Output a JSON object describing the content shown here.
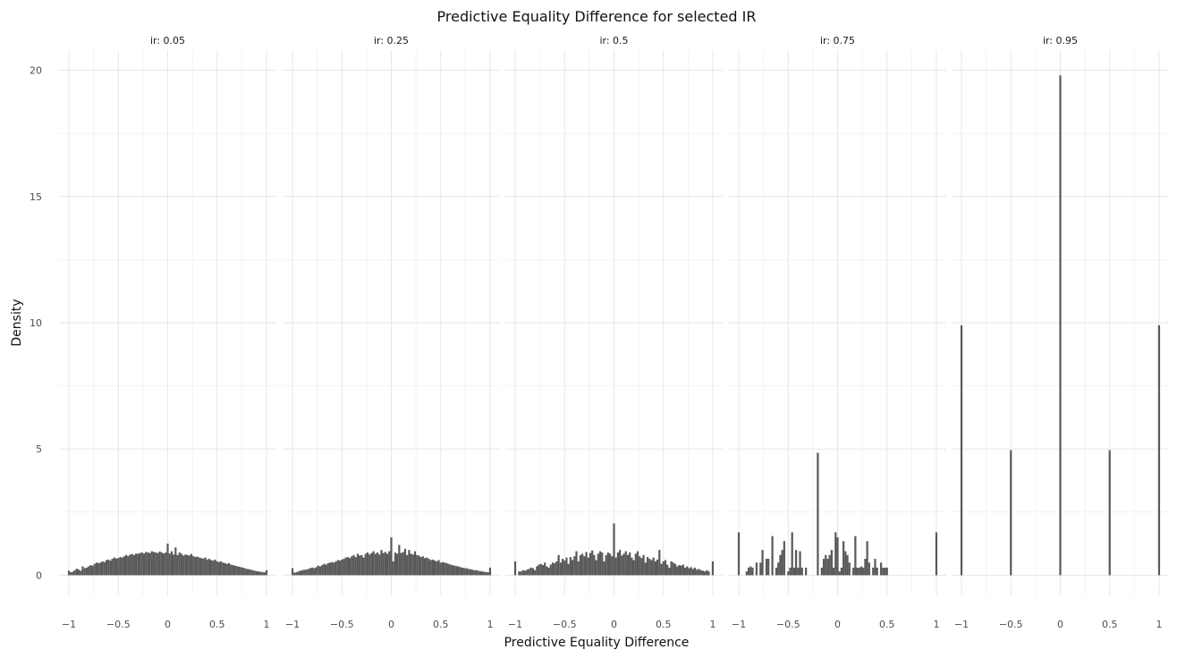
{
  "chart_data": {
    "type": "bar",
    "title": "Predictive Equality Difference for selected IR",
    "xlabel": "Predictive Equality Difference",
    "ylabel": "Density",
    "xlim": [
      -1.1,
      1.1
    ],
    "ylim": [
      -0.8,
      20.8
    ],
    "x_ticks": [
      -1,
      -0.5,
      0,
      0.5,
      1
    ],
    "x_tick_labels": [
      "−1",
      "−0.5",
      "0",
      "0.5",
      "1"
    ],
    "y_ticks": [
      0,
      5,
      10,
      15,
      20
    ],
    "y_tick_labels": [
      "0",
      "5",
      "10",
      "15",
      "20"
    ],
    "grid": true,
    "facets": [
      {
        "label": "ir: 0.05",
        "bin_width": 0.02,
        "x": [
          -1.0,
          -0.98,
          -0.96,
          -0.94,
          -0.92,
          -0.9,
          -0.88,
          -0.86,
          -0.84,
          -0.82,
          -0.8,
          -0.78,
          -0.76,
          -0.74,
          -0.72,
          -0.7,
          -0.68,
          -0.66,
          -0.64,
          -0.62,
          -0.6,
          -0.58,
          -0.56,
          -0.54,
          -0.52,
          -0.5,
          -0.48,
          -0.46,
          -0.44,
          -0.42,
          -0.4,
          -0.38,
          -0.36,
          -0.34,
          -0.32,
          -0.3,
          -0.28,
          -0.26,
          -0.24,
          -0.22,
          -0.2,
          -0.18,
          -0.16,
          -0.14,
          -0.12,
          -0.1,
          -0.08,
          -0.06,
          -0.04,
          -0.02,
          0.0,
          0.02,
          0.04,
          0.06,
          0.08,
          0.1,
          0.12,
          0.14,
          0.16,
          0.18,
          0.2,
          0.22,
          0.24,
          0.26,
          0.28,
          0.3,
          0.32,
          0.34,
          0.36,
          0.38,
          0.4,
          0.42,
          0.44,
          0.46,
          0.48,
          0.5,
          0.52,
          0.54,
          0.56,
          0.58,
          0.6,
          0.62,
          0.64,
          0.66,
          0.68,
          0.7,
          0.72,
          0.74,
          0.76,
          0.78,
          0.8,
          0.82,
          0.84,
          0.86,
          0.88,
          0.9,
          0.92,
          0.94,
          0.96,
          0.98,
          1.0
        ],
        "values": [
          0.18,
          0.12,
          0.14,
          0.2,
          0.26,
          0.22,
          0.18,
          0.35,
          0.28,
          0.3,
          0.35,
          0.4,
          0.38,
          0.45,
          0.5,
          0.48,
          0.5,
          0.55,
          0.52,
          0.6,
          0.62,
          0.58,
          0.65,
          0.7,
          0.66,
          0.68,
          0.72,
          0.7,
          0.75,
          0.8,
          0.76,
          0.82,
          0.84,
          0.8,
          0.86,
          0.85,
          0.88,
          0.9,
          0.86,
          0.92,
          0.9,
          0.88,
          0.95,
          0.92,
          0.9,
          0.88,
          0.94,
          0.9,
          0.86,
          0.9,
          1.25,
          0.86,
          0.95,
          0.82,
          1.1,
          0.8,
          0.9,
          0.85,
          0.78,
          0.82,
          0.8,
          0.78,
          0.84,
          0.76,
          0.72,
          0.74,
          0.7,
          0.68,
          0.66,
          0.7,
          0.62,
          0.65,
          0.6,
          0.58,
          0.62,
          0.55,
          0.52,
          0.55,
          0.5,
          0.48,
          0.45,
          0.48,
          0.42,
          0.4,
          0.38,
          0.36,
          0.34,
          0.32,
          0.3,
          0.28,
          0.25,
          0.24,
          0.22,
          0.2,
          0.18,
          0.16,
          0.15,
          0.14,
          0.12,
          0.12,
          0.2
        ]
      },
      {
        "label": "ir: 0.25",
        "bin_width": 0.02,
        "x": [
          -1.0,
          -0.98,
          -0.96,
          -0.94,
          -0.92,
          -0.9,
          -0.88,
          -0.86,
          -0.84,
          -0.82,
          -0.8,
          -0.78,
          -0.76,
          -0.74,
          -0.72,
          -0.7,
          -0.68,
          -0.66,
          -0.64,
          -0.62,
          -0.6,
          -0.58,
          -0.56,
          -0.54,
          -0.52,
          -0.5,
          -0.48,
          -0.46,
          -0.44,
          -0.42,
          -0.4,
          -0.38,
          -0.36,
          -0.34,
          -0.32,
          -0.3,
          -0.28,
          -0.26,
          -0.24,
          -0.22,
          -0.2,
          -0.18,
          -0.16,
          -0.14,
          -0.12,
          -0.1,
          -0.08,
          -0.06,
          -0.04,
          -0.02,
          0.0,
          0.02,
          0.04,
          0.06,
          0.08,
          0.1,
          0.12,
          0.14,
          0.16,
          0.18,
          0.2,
          0.22,
          0.24,
          0.26,
          0.28,
          0.3,
          0.32,
          0.34,
          0.36,
          0.38,
          0.4,
          0.42,
          0.44,
          0.46,
          0.48,
          0.5,
          0.52,
          0.54,
          0.56,
          0.58,
          0.6,
          0.62,
          0.64,
          0.66,
          0.68,
          0.7,
          0.72,
          0.74,
          0.76,
          0.78,
          0.8,
          0.82,
          0.84,
          0.86,
          0.88,
          0.9,
          0.92,
          0.94,
          0.96,
          0.98,
          1.0
        ],
        "values": [
          0.28,
          0.1,
          0.12,
          0.15,
          0.18,
          0.2,
          0.22,
          0.22,
          0.25,
          0.28,
          0.3,
          0.28,
          0.32,
          0.38,
          0.35,
          0.4,
          0.45,
          0.42,
          0.48,
          0.5,
          0.52,
          0.5,
          0.55,
          0.6,
          0.58,
          0.62,
          0.65,
          0.7,
          0.72,
          0.68,
          0.75,
          0.8,
          0.72,
          0.85,
          0.78,
          0.8,
          0.7,
          0.85,
          0.9,
          0.82,
          0.88,
          0.95,
          0.85,
          0.9,
          0.82,
          1.0,
          0.88,
          0.92,
          0.85,
          0.95,
          1.5,
          0.55,
          0.9,
          0.85,
          1.2,
          0.88,
          0.92,
          1.05,
          0.8,
          1.0,
          0.85,
          0.82,
          0.95,
          0.8,
          0.78,
          0.72,
          0.75,
          0.68,
          0.7,
          0.65,
          0.6,
          0.62,
          0.58,
          0.55,
          0.6,
          0.5,
          0.52,
          0.5,
          0.48,
          0.45,
          0.42,
          0.4,
          0.38,
          0.36,
          0.35,
          0.32,
          0.3,
          0.28,
          0.28,
          0.25,
          0.24,
          0.22,
          0.2,
          0.2,
          0.18,
          0.16,
          0.15,
          0.14,
          0.12,
          0.12,
          0.3
        ]
      },
      {
        "label": "ir: 0.5",
        "bin_width": 0.02,
        "x": [
          -1.0,
          -0.98,
          -0.96,
          -0.94,
          -0.92,
          -0.9,
          -0.88,
          -0.86,
          -0.84,
          -0.82,
          -0.8,
          -0.78,
          -0.76,
          -0.74,
          -0.72,
          -0.7,
          -0.68,
          -0.66,
          -0.64,
          -0.62,
          -0.6,
          -0.58,
          -0.56,
          -0.54,
          -0.52,
          -0.5,
          -0.48,
          -0.46,
          -0.44,
          -0.42,
          -0.4,
          -0.38,
          -0.36,
          -0.34,
          -0.32,
          -0.3,
          -0.28,
          -0.26,
          -0.24,
          -0.22,
          -0.2,
          -0.18,
          -0.16,
          -0.14,
          -0.12,
          -0.1,
          -0.08,
          -0.06,
          -0.04,
          -0.02,
          0.0,
          0.02,
          0.04,
          0.06,
          0.08,
          0.1,
          0.12,
          0.14,
          0.16,
          0.18,
          0.2,
          0.22,
          0.24,
          0.26,
          0.28,
          0.3,
          0.32,
          0.34,
          0.36,
          0.38,
          0.4,
          0.42,
          0.44,
          0.46,
          0.48,
          0.5,
          0.52,
          0.54,
          0.56,
          0.58,
          0.6,
          0.62,
          0.64,
          0.66,
          0.68,
          0.7,
          0.72,
          0.74,
          0.76,
          0.78,
          0.8,
          0.82,
          0.84,
          0.86,
          0.88,
          0.9,
          0.92,
          0.94,
          0.96,
          0.98,
          1.0
        ],
        "values": [
          0.55,
          0.0,
          0.15,
          0.15,
          0.2,
          0.18,
          0.22,
          0.25,
          0.3,
          0.28,
          0.2,
          0.35,
          0.42,
          0.45,
          0.4,
          0.5,
          0.35,
          0.3,
          0.42,
          0.5,
          0.48,
          0.55,
          0.8,
          0.5,
          0.65,
          0.58,
          0.7,
          0.45,
          0.72,
          0.6,
          0.75,
          0.95,
          0.55,
          0.8,
          0.85,
          0.75,
          0.92,
          0.7,
          0.88,
          0.98,
          0.8,
          0.6,
          0.85,
          0.95,
          0.9,
          0.55,
          0.8,
          0.9,
          0.85,
          0.75,
          2.05,
          0.7,
          0.9,
          1.0,
          0.78,
          0.85,
          0.95,
          0.8,
          0.9,
          0.7,
          0.6,
          0.85,
          0.95,
          0.75,
          0.68,
          0.8,
          0.5,
          0.72,
          0.65,
          0.6,
          0.7,
          0.55,
          0.62,
          1.0,
          0.45,
          0.55,
          0.6,
          0.42,
          0.3,
          0.55,
          0.5,
          0.45,
          0.35,
          0.4,
          0.38,
          0.42,
          0.3,
          0.35,
          0.28,
          0.32,
          0.25,
          0.3,
          0.22,
          0.25,
          0.2,
          0.18,
          0.15,
          0.2,
          0.15,
          0.0,
          0.55
        ]
      },
      {
        "label": "ir: 0.75",
        "bin_width": 0.02,
        "x": [
          -1.0,
          -0.98,
          -0.96,
          -0.94,
          -0.92,
          -0.9,
          -0.88,
          -0.86,
          -0.84,
          -0.82,
          -0.8,
          -0.78,
          -0.76,
          -0.74,
          -0.72,
          -0.7,
          -0.68,
          -0.66,
          -0.64,
          -0.62,
          -0.6,
          -0.58,
          -0.56,
          -0.54,
          -0.52,
          -0.5,
          -0.48,
          -0.46,
          -0.44,
          -0.42,
          -0.4,
          -0.38,
          -0.36,
          -0.34,
          -0.32,
          -0.3,
          -0.28,
          -0.26,
          -0.24,
          -0.22,
          -0.2,
          -0.18,
          -0.16,
          -0.14,
          -0.12,
          -0.1,
          -0.08,
          -0.06,
          -0.04,
          -0.02,
          0.0,
          0.02,
          0.04,
          0.06,
          0.08,
          0.1,
          0.12,
          0.14,
          0.16,
          0.18,
          0.2,
          0.22,
          0.24,
          0.26,
          0.28,
          0.3,
          0.32,
          0.34,
          0.36,
          0.38,
          0.4,
          0.42,
          0.44,
          0.46,
          0.48,
          0.5,
          0.52,
          0.54,
          0.56,
          0.58,
          0.6,
          0.62,
          0.64,
          0.66,
          0.68,
          0.7,
          0.72,
          0.74,
          0.76,
          0.78,
          0.8,
          0.82,
          0.84,
          0.86,
          0.88,
          0.9,
          0.92,
          0.94,
          0.96,
          0.98,
          1.0
        ],
        "values": [
          1.7,
          0.0,
          0.0,
          0.0,
          0.15,
          0.3,
          0.35,
          0.3,
          0.0,
          0.5,
          0.0,
          0.5,
          1.0,
          0.0,
          0.65,
          0.65,
          0.0,
          1.55,
          0.0,
          0.3,
          0.5,
          0.8,
          1.0,
          1.35,
          0.0,
          0.15,
          0.3,
          1.7,
          0.3,
          1.0,
          0.3,
          0.95,
          0.3,
          0.0,
          0.3,
          0.0,
          0.0,
          0.0,
          0.0,
          0.0,
          4.85,
          0.0,
          0.3,
          0.65,
          0.8,
          0.65,
          0.8,
          1.0,
          0.3,
          1.7,
          1.5,
          0.15,
          0.3,
          1.35,
          0.95,
          0.8,
          0.5,
          0.0,
          0.3,
          1.55,
          0.3,
          0.3,
          0.35,
          0.3,
          0.65,
          1.35,
          0.5,
          0.0,
          0.3,
          0.65,
          0.3,
          0.0,
          0.5,
          0.3,
          0.3,
          0.3,
          0.0,
          0.0,
          0.0,
          0.0,
          0.0,
          0.0,
          0.0,
          0.0,
          0.0,
          0.0,
          0.0,
          0.0,
          0.0,
          0.0,
          0.0,
          0.0,
          0.0,
          0.0,
          0.0,
          0.0,
          0.0,
          0.0,
          0.0,
          0.0,
          1.7
        ]
      },
      {
        "label": "ir: 0.95",
        "bin_width": 0.02,
        "x": [
          -1.0,
          -0.5,
          0.0,
          0.5,
          1.0
        ],
        "values": [
          9.9,
          4.95,
          19.8,
          4.95,
          9.9
        ]
      }
    ]
  }
}
